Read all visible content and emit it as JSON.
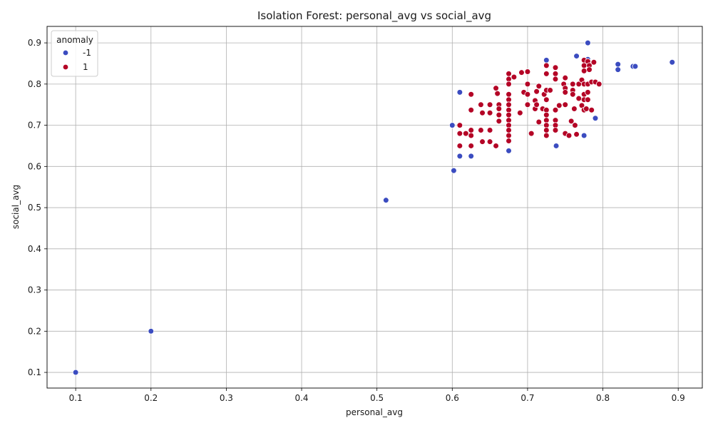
{
  "chart_data": {
    "type": "scatter",
    "title": "Isolation Forest: personal_avg vs social_avg",
    "xlabel": "personal_avg",
    "ylabel": "social_avg",
    "xlim": [
      0.062,
      0.932
    ],
    "ylim": [
      0.062,
      0.94
    ],
    "xticks": [
      0.1,
      0.2,
      0.3,
      0.4,
      0.5,
      0.6,
      0.7,
      0.8,
      0.9
    ],
    "yticks": [
      0.1,
      0.2,
      0.3,
      0.4,
      0.5,
      0.6,
      0.7,
      0.8,
      0.9
    ],
    "grid": true,
    "legend": {
      "title": "anomaly",
      "placement": "top-left"
    },
    "series": [
      {
        "name": "-1",
        "color": "#3b4cc0",
        "points": [
          [
            0.1,
            0.1
          ],
          [
            0.2,
            0.2
          ],
          [
            0.512,
            0.518
          ],
          [
            0.6,
            0.7
          ],
          [
            0.602,
            0.59
          ],
          [
            0.61,
            0.78
          ],
          [
            0.61,
            0.625
          ],
          [
            0.625,
            0.625
          ],
          [
            0.675,
            0.638
          ],
          [
            0.725,
            0.858
          ],
          [
            0.738,
            0.65
          ],
          [
            0.765,
            0.868
          ],
          [
            0.775,
            0.675
          ],
          [
            0.78,
            0.9
          ],
          [
            0.78,
            0.86
          ],
          [
            0.79,
            0.717
          ],
          [
            0.82,
            0.848
          ],
          [
            0.82,
            0.835
          ],
          [
            0.84,
            0.843
          ],
          [
            0.843,
            0.843
          ],
          [
            0.892,
            0.853
          ]
        ]
      },
      {
        "name": "1",
        "color": "#b40426",
        "points": [
          [
            0.61,
            0.7
          ],
          [
            0.61,
            0.68
          ],
          [
            0.61,
            0.65
          ],
          [
            0.618,
            0.68
          ],
          [
            0.625,
            0.775
          ],
          [
            0.625,
            0.737
          ],
          [
            0.625,
            0.688
          ],
          [
            0.625,
            0.675
          ],
          [
            0.625,
            0.65
          ],
          [
            0.638,
            0.75
          ],
          [
            0.638,
            0.688
          ],
          [
            0.64,
            0.66
          ],
          [
            0.64,
            0.73
          ],
          [
            0.65,
            0.75
          ],
          [
            0.65,
            0.73
          ],
          [
            0.65,
            0.688
          ],
          [
            0.65,
            0.66
          ],
          [
            0.658,
            0.79
          ],
          [
            0.658,
            0.65
          ],
          [
            0.66,
            0.777
          ],
          [
            0.662,
            0.75
          ],
          [
            0.662,
            0.71
          ],
          [
            0.662,
            0.74
          ],
          [
            0.662,
            0.725
          ],
          [
            0.675,
            0.825
          ],
          [
            0.675,
            0.812
          ],
          [
            0.675,
            0.8
          ],
          [
            0.675,
            0.775
          ],
          [
            0.675,
            0.762
          ],
          [
            0.675,
            0.75
          ],
          [
            0.675,
            0.737
          ],
          [
            0.675,
            0.725
          ],
          [
            0.675,
            0.712
          ],
          [
            0.675,
            0.7
          ],
          [
            0.675,
            0.688
          ],
          [
            0.675,
            0.675
          ],
          [
            0.675,
            0.662
          ],
          [
            0.682,
            0.817
          ],
          [
            0.69,
            0.73
          ],
          [
            0.692,
            0.828
          ],
          [
            0.695,
            0.78
          ],
          [
            0.7,
            0.83
          ],
          [
            0.7,
            0.775
          ],
          [
            0.7,
            0.8
          ],
          [
            0.7,
            0.75
          ],
          [
            0.705,
            0.68
          ],
          [
            0.71,
            0.76
          ],
          [
            0.71,
            0.74
          ],
          [
            0.712,
            0.75
          ],
          [
            0.712,
            0.782
          ],
          [
            0.715,
            0.795
          ],
          [
            0.715,
            0.708
          ],
          [
            0.72,
            0.74
          ],
          [
            0.722,
            0.775
          ],
          [
            0.725,
            0.845
          ],
          [
            0.725,
            0.825
          ],
          [
            0.725,
            0.785
          ],
          [
            0.725,
            0.762
          ],
          [
            0.725,
            0.737
          ],
          [
            0.725,
            0.725
          ],
          [
            0.725,
            0.712
          ],
          [
            0.725,
            0.7
          ],
          [
            0.725,
            0.688
          ],
          [
            0.725,
            0.675
          ],
          [
            0.73,
            0.785
          ],
          [
            0.737,
            0.84
          ],
          [
            0.737,
            0.825
          ],
          [
            0.737,
            0.812
          ],
          [
            0.737,
            0.737
          ],
          [
            0.737,
            0.712
          ],
          [
            0.737,
            0.7
          ],
          [
            0.737,
            0.688
          ],
          [
            0.742,
            0.748
          ],
          [
            0.748,
            0.8
          ],
          [
            0.75,
            0.815
          ],
          [
            0.75,
            0.79
          ],
          [
            0.75,
            0.78
          ],
          [
            0.75,
            0.75
          ],
          [
            0.75,
            0.68
          ],
          [
            0.755,
            0.675
          ],
          [
            0.758,
            0.71
          ],
          [
            0.76,
            0.8
          ],
          [
            0.76,
            0.785
          ],
          [
            0.76,
            0.775
          ],
          [
            0.762,
            0.74
          ],
          [
            0.763,
            0.7
          ],
          [
            0.765,
            0.678
          ],
          [
            0.768,
            0.8
          ],
          [
            0.768,
            0.765
          ],
          [
            0.772,
            0.748
          ],
          [
            0.772,
            0.81
          ],
          [
            0.775,
            0.858
          ],
          [
            0.775,
            0.845
          ],
          [
            0.775,
            0.832
          ],
          [
            0.775,
            0.8
          ],
          [
            0.775,
            0.775
          ],
          [
            0.775,
            0.762
          ],
          [
            0.775,
            0.737
          ],
          [
            0.778,
            0.74
          ],
          [
            0.78,
            0.855
          ],
          [
            0.78,
            0.8
          ],
          [
            0.78,
            0.78
          ],
          [
            0.78,
            0.762
          ],
          [
            0.782,
            0.845
          ],
          [
            0.782,
            0.835
          ],
          [
            0.785,
            0.805
          ],
          [
            0.785,
            0.737
          ],
          [
            0.788,
            0.853
          ],
          [
            0.79,
            0.805
          ],
          [
            0.795,
            0.8
          ]
        ]
      }
    ]
  }
}
